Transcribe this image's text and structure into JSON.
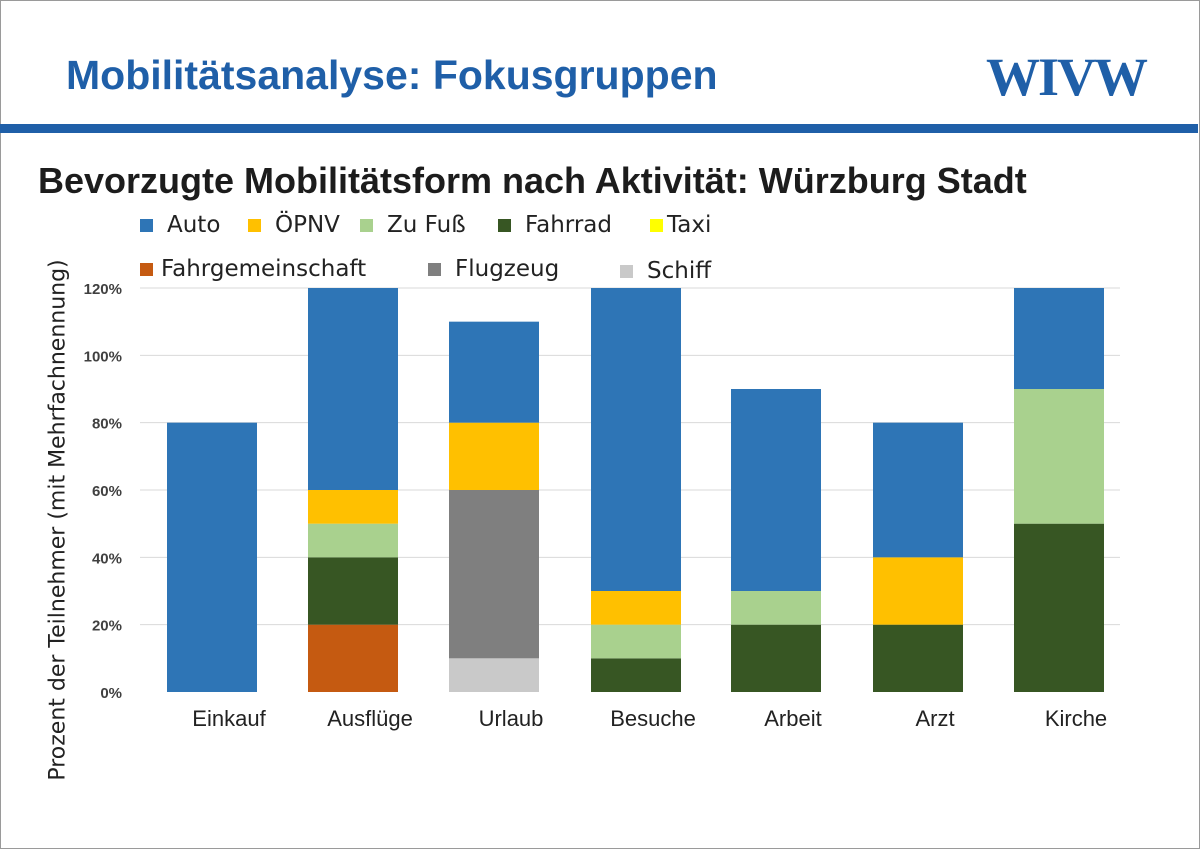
{
  "header": {
    "title": "Mobilitätsanalyse: Fokusgruppen",
    "logo": "WIVW",
    "brand_color": "#1f5fa8"
  },
  "chart_data": {
    "type": "bar",
    "stacked": true,
    "title": "Bevorzugte Mobilitätsform nach Aktivität: Würzburg Stadt",
    "xlabel": "",
    "ylabel": "Prozent der Teilnehmer (mit Mehrfachnennung)",
    "ylim": [
      0,
      120
    ],
    "yticks": [
      "0%",
      "20%",
      "40%",
      "60%",
      "80%",
      "100%",
      "120%"
    ],
    "grid": true,
    "legend_position": "top",
    "categories": [
      "Einkauf",
      "Ausflüge",
      "Urlaub",
      "Besuche",
      "Arbeit",
      "Arzt",
      "Kirche"
    ],
    "series": [
      {
        "name": "Auto",
        "color": "#2e75b6",
        "values": [
          80,
          60,
          30,
          90,
          60,
          40,
          30
        ]
      },
      {
        "name": "ÖPNV",
        "color": "#ffc000",
        "values": [
          0,
          10,
          20,
          10,
          0,
          20,
          0
        ]
      },
      {
        "name": "Zu Fuß",
        "color": "#a9d18e",
        "values": [
          0,
          10,
          0,
          10,
          10,
          0,
          40
        ]
      },
      {
        "name": "Fahrrad",
        "color": "#375623",
        "values": [
          0,
          20,
          0,
          10,
          20,
          20,
          50
        ]
      },
      {
        "name": "Taxi",
        "color": "#ffff00",
        "values": [
          0,
          0,
          0,
          0,
          0,
          0,
          0
        ]
      },
      {
        "name": "Fahrgemeinschaft",
        "color": "#c55a11",
        "values": [
          0,
          20,
          0,
          0,
          0,
          0,
          0
        ]
      },
      {
        "name": "Flugzeug",
        "color": "#7f7f7f",
        "values": [
          0,
          0,
          50,
          0,
          0,
          0,
          0
        ]
      },
      {
        "name": "Schiff",
        "color": "#c9c9c9",
        "values": [
          0,
          0,
          10,
          0,
          0,
          0,
          0
        ]
      }
    ],
    "stack_order": [
      "Fahrgemeinschaft",
      "Schiff",
      "Flugzeug",
      "Fahrrad",
      "Zu Fuß",
      "ÖPNV",
      "Taxi",
      "Auto"
    ]
  }
}
